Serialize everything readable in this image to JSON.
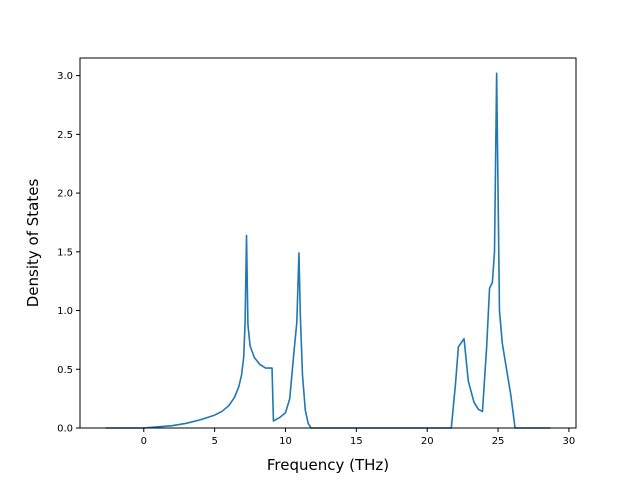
{
  "chart_data": {
    "type": "line",
    "title": "",
    "xlabel": "Frequency (THz)",
    "ylabel": "Density of States",
    "xlim": [
      -4.5,
      30.5
    ],
    "ylim": [
      0.0,
      3.15
    ],
    "xticks": [
      0,
      5,
      10,
      15,
      20,
      25,
      30
    ],
    "yticks": [
      0.0,
      0.5,
      1.0,
      1.5,
      2.0,
      2.5,
      3.0
    ],
    "xtick_labels": [
      "0",
      "5",
      "10",
      "15",
      "20",
      "25",
      "30"
    ],
    "ytick_labels": [
      "0.0",
      "0.5",
      "1.0",
      "1.5",
      "2.0",
      "2.5",
      "3.0"
    ],
    "grid": false,
    "legend": false,
    "series": [
      {
        "color": "#1f77b4",
        "x": [
          -2.7,
          0.0,
          1.0,
          2.0,
          3.0,
          4.0,
          5.0,
          5.5,
          6.0,
          6.4,
          6.7,
          6.9,
          7.05,
          7.15,
          7.25,
          7.35,
          7.5,
          7.8,
          8.2,
          8.6,
          9.05,
          9.15,
          9.6,
          10.0,
          10.3,
          10.6,
          10.8,
          10.95,
          11.05,
          11.2,
          11.4,
          11.6,
          11.8,
          12.0,
          21.7,
          22.0,
          22.2,
          22.6,
          22.9,
          23.3,
          23.6,
          23.9,
          24.2,
          24.4,
          24.6,
          24.75,
          24.9,
          25.1,
          25.3,
          25.6,
          25.9,
          26.2,
          28.7
        ],
        "y": [
          0.0,
          0.0,
          0.01,
          0.02,
          0.04,
          0.07,
          0.11,
          0.14,
          0.19,
          0.26,
          0.35,
          0.45,
          0.6,
          0.9,
          1.64,
          0.88,
          0.7,
          0.6,
          0.54,
          0.51,
          0.51,
          0.06,
          0.09,
          0.13,
          0.25,
          0.65,
          0.9,
          1.49,
          0.95,
          0.45,
          0.15,
          0.04,
          0.0,
          0.0,
          0.0,
          0.38,
          0.69,
          0.76,
          0.4,
          0.22,
          0.16,
          0.14,
          0.7,
          1.19,
          1.24,
          1.5,
          3.02,
          1.0,
          0.72,
          0.5,
          0.28,
          0.0,
          0.0
        ]
      }
    ]
  }
}
